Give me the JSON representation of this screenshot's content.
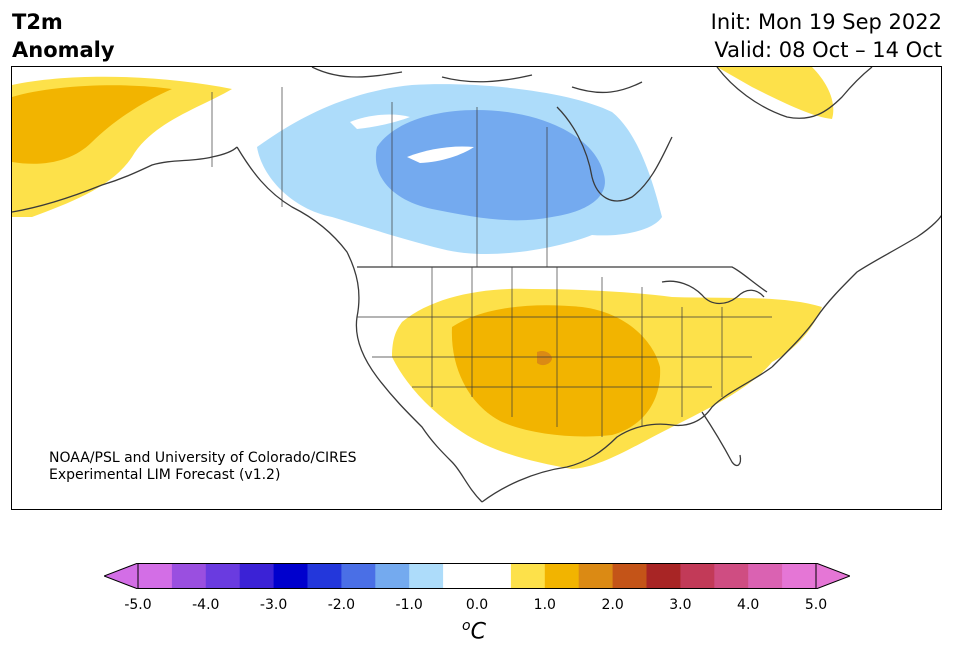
{
  "title": {
    "variable": "T2m",
    "subtitle": "Anomaly",
    "init": "Init: Mon 19 Sep 2022",
    "valid": "Valid: 08 Oct – 14 Oct"
  },
  "credit": {
    "line1": "NOAA/PSL and University of Colorado/CIRES",
    "line2": "Experimental LIM Forecast (v1.2)"
  },
  "colorbar": {
    "unit_sup": "o",
    "unit": "C",
    "ticks": [
      "-5.0",
      "-4.0",
      "-3.0",
      "-2.0",
      "-1.0",
      "0.0",
      "1.0",
      "2.0",
      "3.0",
      "4.0",
      "5.0"
    ],
    "colors": [
      "#d36ee6",
      "#9a4fe0",
      "#6a3be0",
      "#3b22d6",
      "#0000cd",
      "#2337db",
      "#4a6fe6",
      "#74aaef",
      "#addcfa",
      "#ffffff",
      "#ffffff",
      "#fde14a",
      "#f2b400",
      "#db8a14",
      "#c45418",
      "#a82525",
      "#c23a58",
      "#cf4d82",
      "#da62b2",
      "#e576d6"
    ],
    "under_color": "#d36ee6",
    "over_color": "#e576d6"
  },
  "map": {
    "colors": {
      "land_line": "#3a3a3a",
      "warm1": "#fde14a",
      "warm2": "#f2b400",
      "warm3": "#db8a14",
      "cool1": "#addcfa",
      "cool2": "#74aaef"
    }
  }
}
